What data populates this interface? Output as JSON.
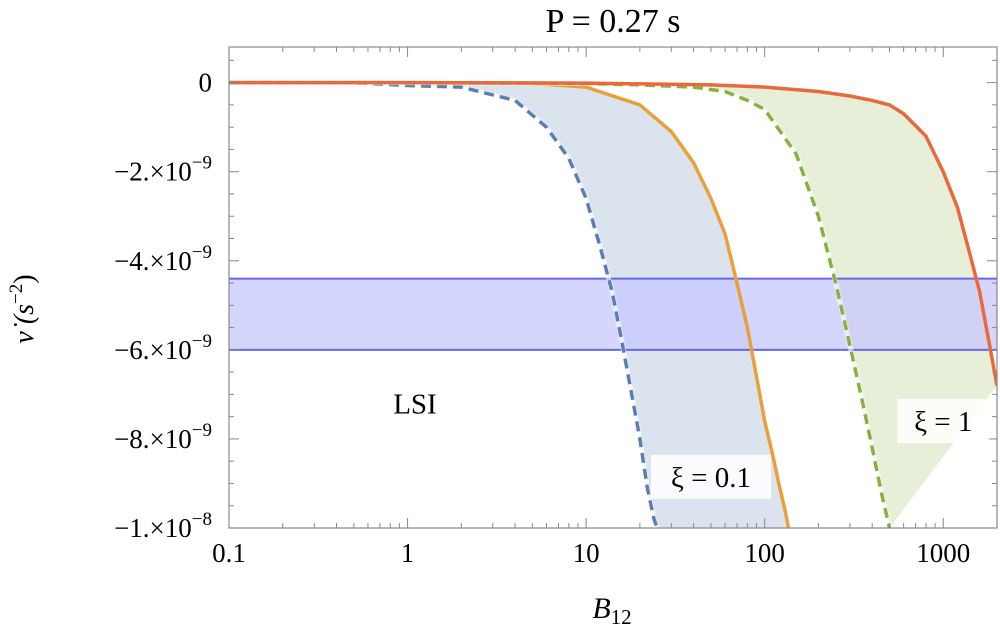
{
  "chart_data": {
    "type": "line",
    "title": "P = 0.27 s",
    "xlabel": "B",
    "xlabel_sub": "12",
    "ylabel": "ν̇ (s",
    "ylabel_sup": "−2",
    "ylabel_close": ")",
    "x_scale": "log",
    "xlim": [
      0.1,
      2000
    ],
    "ylim": [
      -1e-08,
      8e-10
    ],
    "x_ticks": [
      {
        "value": 0.1,
        "label": "0.1"
      },
      {
        "value": 1,
        "label": "1"
      },
      {
        "value": 10,
        "label": "10"
      },
      {
        "value": 100,
        "label": "100"
      },
      {
        "value": 1000,
        "label": "1000"
      }
    ],
    "y_ticks": [
      {
        "value": 0,
        "mant": "0",
        "exp": ""
      },
      {
        "value": -2e-09,
        "mant": "−2.×10",
        "exp": "−9"
      },
      {
        "value": -4e-09,
        "mant": "−4.×10",
        "exp": "−9"
      },
      {
        "value": -6e-09,
        "mant": "−6.×10",
        "exp": "−9"
      },
      {
        "value": -8e-09,
        "mant": "−8.×10",
        "exp": "−9"
      },
      {
        "value": -1e-08,
        "mant": "−1.×10",
        "exp": "−8"
      }
    ],
    "grid": false,
    "series": [
      {
        "color": "#5b7fb3",
        "style": "dashed",
        "x": [
          0.1,
          0.5,
          1,
          2,
          4,
          6,
          8,
          10,
          12,
          14,
          16,
          18,
          20,
          22,
          24,
          25
        ],
        "y": [
          0,
          -4e-12,
          -6.4e-11,
          -1e-10,
          -4e-10,
          -1e-09,
          -1.7e-09,
          -2.6e-09,
          -3.7e-09,
          -4.7e-09,
          -5.9e-09,
          -7e-09,
          -8e-09,
          -9.1e-09,
          -9.8e-09,
          -1e-08
        ]
      },
      {
        "color": "#e8a13a",
        "style": "solid",
        "x": [
          0.1,
          0.5,
          1,
          5,
          10,
          20,
          30,
          40,
          50,
          60,
          70,
          80,
          90,
          100,
          110,
          120,
          130,
          136
        ],
        "y": [
          0,
          0,
          0,
          -2e-11,
          -1e-10,
          -5e-10,
          -1.1e-09,
          -1.8e-09,
          -2.6e-09,
          -3.4e-09,
          -4.5e-09,
          -5.5e-09,
          -6.6e-09,
          -7.6e-09,
          -8.3e-09,
          -9e-09,
          -9.6e-09,
          -1e-08
        ]
      },
      {
        "color": "#86b143",
        "style": "dashed",
        "x": [
          0.1,
          1,
          5,
          10,
          20,
          40,
          60,
          80,
          100,
          150,
          200,
          250,
          300,
          350,
          400,
          450,
          500
        ],
        "y": [
          0,
          0,
          -1e-11,
          -2e-11,
          -5e-11,
          -1e-10,
          -2e-10,
          -4e-10,
          -6e-10,
          -1.6e-09,
          -3e-09,
          -4.5e-09,
          -5.9e-09,
          -7.1e-09,
          -8.2e-09,
          -9.2e-09,
          -1e-08
        ]
      },
      {
        "color": "#e86a3a",
        "style": "solid",
        "x": [
          0.1,
          1,
          10,
          50,
          100,
          200,
          300,
          400,
          500,
          600,
          800,
          1000,
          1200,
          1400,
          1600,
          1800,
          2000
        ],
        "y": [
          0,
          0,
          -1e-11,
          -5e-11,
          -1e-10,
          -2e-10,
          -3e-10,
          -4e-10,
          -5e-10,
          -7e-10,
          -1.2e-09,
          -2e-09,
          -2.8e-09,
          -3.8e-09,
          -4.7e-09,
          -5.8e-09,
          -6.8e-09
        ]
      }
    ],
    "shaded_regions": [
      {
        "between_series": [
          0,
          1
        ],
        "color": "#dbe4ee"
      },
      {
        "between_series": [
          2,
          3
        ],
        "color": "#e8efd8"
      }
    ],
    "band": {
      "y": [
        -6e-09,
        -4.4e-09
      ],
      "fill": "#c7c8fc",
      "edge": "#6666ee"
    },
    "annotations": [
      {
        "id": "lsi",
        "text": "LSI",
        "x": 1.1,
        "y": -7.2e-09,
        "boxed": false
      },
      {
        "id": "xi-01",
        "text": "ξ = 0.1",
        "x": 50,
        "y": -8.85e-09,
        "boxed": true
      },
      {
        "id": "xi-1",
        "text": "ξ = 1",
        "x": 1000,
        "y": -7.6e-09,
        "boxed": true
      }
    ]
  }
}
